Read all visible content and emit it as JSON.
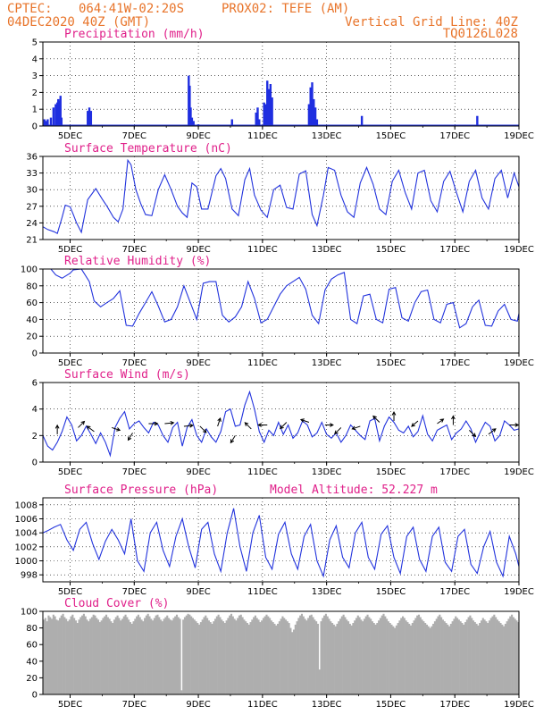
{
  "header": {
    "line1_left": "CPTEC:",
    "line1_coords": "064:41W-02:20S",
    "line1_station": "PROX02: TEFE (AM)",
    "line2_left": "04DEC2020 40Z (GMT)",
    "line2_right": "Vertical Grid Line: 40Z",
    "line3_right": "TQ0126L028"
  },
  "colors": {
    "header": "#e8742a",
    "panel_title": "#e0208a",
    "series_line": "#2233dd",
    "precip_bar": "#1f2ee0",
    "cloud_bar": "#aeaeae"
  },
  "x_axis": {
    "ticks": [
      {
        "day": 5,
        "label": "5DEC"
      },
      {
        "day": 7,
        "label": "7DEC"
      },
      {
        "day": 9,
        "label": "9DEC"
      },
      {
        "day": 11,
        "label": "11DEC"
      },
      {
        "day": 13,
        "label": "13DEC"
      },
      {
        "day": 15,
        "label": "15DEC"
      },
      {
        "day": 17,
        "label": "17DEC"
      },
      {
        "day": 19,
        "label": "19DEC"
      }
    ],
    "range_days": [
      4.15,
      19.0
    ]
  },
  "chart_data": [
    {
      "type": "bar",
      "title": "Precipitation (mm/h)",
      "ylim": [
        0,
        5
      ],
      "yticks": [
        "0",
        "1",
        "2",
        "3",
        "4",
        "5"
      ],
      "grid": true,
      "x_days": [
        4.2,
        4.25,
        4.3,
        4.4,
        4.48,
        4.55,
        4.6,
        4.63,
        4.67,
        4.7,
        4.73,
        5.55,
        5.6,
        5.65,
        8.7,
        8.73,
        8.76,
        8.8,
        8.85,
        9.0,
        10.05,
        10.8,
        10.85,
        10.9,
        11.05,
        11.1,
        11.15,
        11.2,
        11.25,
        11.3,
        12.45,
        12.5,
        12.55,
        12.6,
        12.65,
        12.7,
        14.1,
        17.7
      ],
      "values": [
        0.4,
        0.3,
        0.4,
        0.5,
        1.1,
        1.3,
        1.4,
        1.6,
        1.5,
        1.8,
        0.5,
        0.9,
        1.1,
        0.9,
        3.0,
        2.4,
        1.1,
        0.5,
        0.3,
        0.1,
        0.4,
        0.8,
        1.1,
        0.4,
        1.4,
        1.3,
        2.7,
        2.2,
        2.5,
        1.7,
        1.3,
        2.3,
        2.6,
        1.6,
        1.1,
        0.4,
        0.6,
        0.6
      ]
    },
    {
      "type": "line",
      "title": "Surface Temperature (nC)",
      "ylim": [
        21,
        36
      ],
      "yticks": [
        "21",
        "24",
        "27",
        "30",
        "33",
        "36"
      ],
      "grid": true,
      "x": [
        4.15,
        4.3,
        4.5,
        4.6,
        4.75,
        4.85,
        5.0,
        5.1,
        5.2,
        5.35,
        5.55,
        5.8,
        6.0,
        6.15,
        6.35,
        6.5,
        6.65,
        6.8,
        6.9,
        7.05,
        7.2,
        7.35,
        7.55,
        7.75,
        7.95,
        8.15,
        8.35,
        8.5,
        8.65,
        8.8,
        8.95,
        9.1,
        9.3,
        9.55,
        9.7,
        9.85,
        10.05,
        10.25,
        10.45,
        10.6,
        10.75,
        10.95,
        11.15,
        11.35,
        11.55,
        11.75,
        11.95,
        12.15,
        12.35,
        12.55,
        12.7,
        12.9,
        13.05,
        13.25,
        13.45,
        13.65,
        13.85,
        14.05,
        14.25,
        14.45,
        14.65,
        14.85,
        15.05,
        15.25,
        15.45,
        15.65,
        15.85,
        16.05,
        16.25,
        16.45,
        16.65,
        16.85,
        17.05,
        17.25,
        17.45,
        17.65,
        17.85,
        18.05,
        18.25,
        18.45,
        18.65,
        18.85,
        19.0
      ],
      "values": [
        23.3,
        22.8,
        22.4,
        22.1,
        25.0,
        27.2,
        26.9,
        25.5,
        24.0,
        22.3,
        28.2,
        30.2,
        28.3,
        27.0,
        25.0,
        24.2,
        26.5,
        35.3,
        34.5,
        30.0,
        27.5,
        25.5,
        25.3,
        30.0,
        32.7,
        30.0,
        27.0,
        25.8,
        25.0,
        31.2,
        30.5,
        26.5,
        26.5,
        32.5,
        33.8,
        32.0,
        26.5,
        25.3,
        31.8,
        33.8,
        29.0,
        26.3,
        25.0,
        30.0,
        30.8,
        26.8,
        26.5,
        32.8,
        33.4,
        25.5,
        23.5,
        29.0,
        34.0,
        33.5,
        29.0,
        26.0,
        25.0,
        31.2,
        34.0,
        31.0,
        26.5,
        25.5,
        31.5,
        33.5,
        29.5,
        26.5,
        33.0,
        33.5,
        28.0,
        26.0,
        31.5,
        33.3,
        29.5,
        26.0,
        31.5,
        33.5,
        28.5,
        26.5,
        32.0,
        33.5,
        28.5,
        33.0,
        30.5
      ]
    },
    {
      "type": "line",
      "title": "Relative Humidity (%)",
      "ylim": [
        0,
        100
      ],
      "yticks": [
        "0",
        "20",
        "40",
        "60",
        "80",
        "100"
      ],
      "grid": true,
      "x": [
        4.15,
        4.4,
        4.55,
        4.75,
        5.0,
        5.1,
        5.35,
        5.6,
        5.75,
        5.95,
        6.15,
        6.35,
        6.55,
        6.75,
        6.95,
        7.15,
        7.35,
        7.55,
        7.75,
        7.95,
        8.15,
        8.35,
        8.55,
        8.75,
        8.95,
        9.15,
        9.35,
        9.55,
        9.75,
        9.95,
        10.15,
        10.35,
        10.55,
        10.75,
        10.95,
        11.15,
        11.35,
        11.55,
        11.75,
        11.95,
        12.15,
        12.35,
        12.55,
        12.75,
        12.95,
        13.15,
        13.35,
        13.55,
        13.75,
        13.95,
        14.15,
        14.35,
        14.55,
        14.75,
        14.95,
        15.15,
        15.35,
        15.55,
        15.75,
        15.95,
        16.15,
        16.35,
        16.55,
        16.75,
        16.95,
        17.15,
        17.35,
        17.55,
        17.75,
        17.95,
        18.15,
        18.35,
        18.55,
        18.75,
        18.95,
        19.0
      ],
      "values": [
        100,
        100,
        93,
        89,
        95,
        99,
        100,
        85,
        62,
        55,
        60,
        65,
        74,
        33,
        32,
        47,
        60,
        73,
        56,
        37,
        40,
        55,
        80,
        60,
        40,
        83,
        85,
        85,
        45,
        37,
        43,
        55,
        85,
        65,
        36,
        40,
        55,
        70,
        80,
        85,
        90,
        76,
        45,
        35,
        75,
        88,
        93,
        96,
        40,
        35,
        68,
        70,
        40,
        36,
        76,
        78,
        42,
        38,
        60,
        73,
        75,
        40,
        36,
        58,
        60,
        30,
        35,
        55,
        63,
        33,
        32,
        50,
        58,
        40,
        38,
        47
      ]
    },
    {
      "type": "line",
      "title": "Surface Wind (m/s)",
      "ylim": [
        0,
        6
      ],
      "yticks": [
        "0",
        "2",
        "4",
        "6"
      ],
      "grid": true,
      "x": [
        4.15,
        4.3,
        4.45,
        4.6,
        4.75,
        4.9,
        5.05,
        5.2,
        5.35,
        5.5,
        5.65,
        5.8,
        5.95,
        6.1,
        6.25,
        6.4,
        6.55,
        6.7,
        6.85,
        7.0,
        7.15,
        7.3,
        7.45,
        7.6,
        7.75,
        7.9,
        8.05,
        8.2,
        8.35,
        8.5,
        8.65,
        8.8,
        8.95,
        9.1,
        9.25,
        9.4,
        9.55,
        9.7,
        9.85,
        10.0,
        10.15,
        10.3,
        10.45,
        10.6,
        10.75,
        10.9,
        11.05,
        11.2,
        11.35,
        11.5,
        11.65,
        11.8,
        11.95,
        12.1,
        12.25,
        12.4,
        12.55,
        12.7,
        12.85,
        13.0,
        13.15,
        13.3,
        13.45,
        13.6,
        13.75,
        13.9,
        14.05,
        14.2,
        14.35,
        14.5,
        14.65,
        14.8,
        14.95,
        15.1,
        15.25,
        15.4,
        15.55,
        15.7,
        15.85,
        16.0,
        16.15,
        16.3,
        16.45,
        16.6,
        16.75,
        16.9,
        17.05,
        17.2,
        17.35,
        17.5,
        17.65,
        17.8,
        17.95,
        18.1,
        18.25,
        18.4,
        18.55,
        18.7,
        18.85,
        19.0
      ],
      "values": [
        2.0,
        1.2,
        0.9,
        1.5,
        2.3,
        3.4,
        2.8,
        1.6,
        2.0,
        2.7,
        2.1,
        1.4,
        2.2,
        1.5,
        0.5,
        2.6,
        3.3,
        3.8,
        2.5,
        2.9,
        3.1,
        2.6,
        2.2,
        3.0,
        2.8,
        2.0,
        1.5,
        2.6,
        3.0,
        1.2,
        2.6,
        3.2,
        2.0,
        1.5,
        2.5,
        1.9,
        1.5,
        2.3,
        3.8,
        4.0,
        2.7,
        2.8,
        4.3,
        5.3,
        4.0,
        2.3,
        1.5,
        2.4,
        2.0,
        3.0,
        2.1,
        2.8,
        1.8,
        2.2,
        3.1,
        2.8,
        1.9,
        2.2,
        3.0,
        2.1,
        1.8,
        2.2,
        1.5,
        2.0,
        2.8,
        2.4,
        2.0,
        1.7,
        3.1,
        3.3,
        1.6,
        2.7,
        3.4,
        3.0,
        2.4,
        2.2,
        2.7,
        1.9,
        2.3,
        3.5,
        2.1,
        1.6,
        2.4,
        2.6,
        2.8,
        1.7,
        2.2,
        2.5,
        3.1,
        2.5,
        1.5,
        2.3,
        3.0,
        2.7,
        1.6,
        2.0,
        3.1,
        2.8,
        2.4,
        2.5
      ],
      "vectors": [
        {
          "x": 4.6,
          "y": 2.1,
          "dx": 0.0,
          "dy": 1.0
        },
        {
          "x": 5.25,
          "y": 2.6,
          "dx": 0.7,
          "dy": 0.7
        },
        {
          "x": 5.75,
          "y": 2.3,
          "dx": -0.8,
          "dy": 0.6
        },
        {
          "x": 6.3,
          "y": 2.6,
          "dx": 0.9,
          "dy": -0.3
        },
        {
          "x": 6.95,
          "y": 2.2,
          "dx": -0.5,
          "dy": -0.8
        },
        {
          "x": 7.45,
          "y": 2.9,
          "dx": 1.0,
          "dy": 0.0
        },
        {
          "x": 7.95,
          "y": 2.9,
          "dx": 1.0,
          "dy": 0.1
        },
        {
          "x": 8.55,
          "y": 2.7,
          "dx": 1.0,
          "dy": 0.1
        },
        {
          "x": 9.05,
          "y": 2.7,
          "dx": 0.7,
          "dy": -0.7
        },
        {
          "x": 9.6,
          "y": 2.7,
          "dx": 0.3,
          "dy": 0.9
        },
        {
          "x": 10.15,
          "y": 2.0,
          "dx": -0.5,
          "dy": -0.8
        },
        {
          "x": 10.65,
          "y": 2.5,
          "dx": -0.7,
          "dy": 0.7
        },
        {
          "x": 11.15,
          "y": 2.8,
          "dx": -1.0,
          "dy": 0.0
        },
        {
          "x": 11.75,
          "y": 3.0,
          "dx": -0.7,
          "dy": -0.7
        },
        {
          "x": 12.45,
          "y": 3.0,
          "dx": -0.9,
          "dy": 0.3
        },
        {
          "x": 12.95,
          "y": 2.8,
          "dx": 0.9,
          "dy": 0.0
        },
        {
          "x": 13.45,
          "y": 2.6,
          "dx": -0.7,
          "dy": -0.7
        },
        {
          "x": 14.05,
          "y": 2.7,
          "dx": -0.9,
          "dy": -0.3
        },
        {
          "x": 14.65,
          "y": 3.0,
          "dx": -0.7,
          "dy": 0.7
        },
        {
          "x": 15.1,
          "y": 3.1,
          "dx": 0.0,
          "dy": 1.0
        },
        {
          "x": 15.85,
          "y": 3.1,
          "dx": -0.7,
          "dy": -0.6
        },
        {
          "x": 16.45,
          "y": 2.9,
          "dx": 0.7,
          "dy": 0.5
        },
        {
          "x": 16.95,
          "y": 2.8,
          "dx": 0.0,
          "dy": 1.0
        },
        {
          "x": 17.45,
          "y": 2.4,
          "dx": 0.7,
          "dy": -0.7
        },
        {
          "x": 18.05,
          "y": 2.1,
          "dx": 0.8,
          "dy": 0.6
        },
        {
          "x": 18.7,
          "y": 2.8,
          "dx": 1.0,
          "dy": 0.0
        }
      ]
    },
    {
      "type": "line",
      "title": "Surface Pressure (hPa)",
      "annotation": "Model Altitude: 52.227 m",
      "ylim": [
        997,
        1009
      ],
      "yticks": [
        "998",
        "1000",
        "1002",
        "1004",
        "1006",
        "1008"
      ],
      "grid": true,
      "x": [
        4.15,
        4.3,
        4.5,
        4.7,
        4.9,
        5.1,
        5.3,
        5.5,
        5.7,
        5.9,
        6.1,
        6.3,
        6.5,
        6.7,
        6.9,
        7.1,
        7.3,
        7.5,
        7.7,
        7.9,
        8.1,
        8.3,
        8.5,
        8.7,
        8.9,
        9.1,
        9.3,
        9.5,
        9.7,
        9.9,
        10.1,
        10.3,
        10.5,
        10.7,
        10.9,
        11.1,
        11.3,
        11.5,
        11.7,
        11.9,
        12.1,
        12.3,
        12.5,
        12.7,
        12.9,
        13.1,
        13.3,
        13.5,
        13.7,
        13.9,
        14.1,
        14.3,
        14.5,
        14.7,
        14.9,
        15.1,
        15.3,
        15.5,
        15.7,
        15.9,
        16.1,
        16.3,
        16.5,
        16.7,
        16.9,
        17.1,
        17.3,
        17.5,
        17.7,
        17.9,
        18.1,
        18.3,
        18.5,
        18.7,
        18.9,
        19.0
      ],
      "values": [
        1004.0,
        1004.3,
        1004.8,
        1005.2,
        1003.0,
        1001.5,
        1004.5,
        1005.5,
        1002.5,
        1000.2,
        1002.8,
        1004.5,
        1003.0,
        1001.0,
        1006.0,
        1000.0,
        998.5,
        1004.0,
        1005.5,
        1001.5,
        999.2,
        1003.5,
        1006.0,
        1002.0,
        999.0,
        1004.5,
        1005.5,
        1001.0,
        998.5,
        1004.0,
        1007.5,
        1002.0,
        998.5,
        1004.0,
        1006.5,
        1000.5,
        998.8,
        1003.8,
        1005.5,
        1001.0,
        998.8,
        1003.5,
        1005.2,
        1000.0,
        997.8,
        1003.0,
        1005.0,
        1000.5,
        999.0,
        1004.0,
        1005.5,
        1000.5,
        998.8,
        1003.8,
        1005.0,
        1000.5,
        998.2,
        1003.5,
        1004.8,
        1000.2,
        998.5,
        1003.5,
        1004.8,
        999.8,
        998.5,
        1003.5,
        1004.5,
        999.5,
        998.2,
        1002.0,
        1004.2,
        999.8,
        997.8,
        1003.5,
        1001.0,
        999.2
      ]
    },
    {
      "type": "bar",
      "title": "Cloud Cover (%)",
      "ylim": [
        0,
        100
      ],
      "yticks": [
        "0",
        "20",
        "40",
        "60",
        "80",
        "100"
      ],
      "grid": false,
      "x_start": 4.15,
      "x_step": 0.05,
      "values": [
        90,
        92,
        88,
        95,
        93,
        91,
        96,
        94,
        90,
        89,
        92,
        95,
        97,
        93,
        91,
        88,
        90,
        94,
        96,
        92,
        89,
        86,
        90,
        93,
        95,
        97,
        94,
        90,
        88,
        91,
        93,
        96,
        95,
        92,
        90,
        87,
        89,
        92,
        94,
        96,
        93,
        91,
        88,
        86,
        90,
        93,
        95,
        92,
        89,
        91,
        94,
        96,
        93,
        90,
        87,
        85,
        88,
        91,
        94,
        96,
        93,
        90,
        88,
        92,
        95,
        97,
        94,
        91,
        89,
        92,
        95,
        96,
        93,
        90,
        88,
        91,
        93,
        95,
        92,
        90,
        89,
        92,
        94,
        96,
        93,
        91,
        5,
        90,
        93,
        95,
        97,
        96,
        94,
        92,
        90,
        88,
        86,
        84,
        87,
        90,
        93,
        95,
        92,
        89,
        87,
        85,
        88,
        91,
        94,
        96,
        93,
        90,
        88,
        86,
        89,
        92,
        95,
        97,
        94,
        91,
        89,
        92,
        95,
        96,
        93,
        90,
        88,
        86,
        84,
        87,
        90,
        93,
        95,
        92,
        90,
        87,
        89,
        92,
        94,
        96,
        94,
        92,
        89,
        87,
        85,
        83,
        85,
        88,
        91,
        94,
        92,
        90,
        88,
        86,
        80,
        75,
        78,
        84,
        88,
        92,
        95,
        97,
        94,
        91,
        89,
        92,
        95,
        96,
        93,
        90,
        88,
        85,
        30,
        88,
        92,
        95,
        97,
        94,
        91,
        88,
        86,
        84,
        82,
        85,
        88,
        91,
        94,
        96,
        93,
        90,
        88,
        85,
        83,
        86,
        89,
        92,
        95,
        93,
        90,
        88,
        91,
        94,
        96,
        93,
        91,
        88,
        86,
        84,
        86,
        89,
        92,
        95,
        97,
        94,
        91,
        88,
        86,
        84,
        82,
        80,
        83,
        86,
        89,
        92,
        94,
        92,
        89,
        87,
        85,
        83,
        86,
        89,
        92,
        95,
        96,
        93,
        90,
        88,
        86,
        84,
        82,
        80,
        82,
        85,
        88,
        91,
        94,
        96,
        93,
        90,
        88,
        86,
        84,
        82,
        85,
        88,
        91,
        94,
        92,
        90,
        88,
        86,
        84,
        87,
        90,
        93,
        95,
        92,
        89,
        87,
        85,
        83,
        86,
        89,
        92,
        90,
        88,
        86,
        89,
        92,
        94,
        96,
        93,
        90,
        88,
        86,
        84,
        82,
        85,
        88,
        91,
        94,
        96,
        93,
        91,
        89,
        87,
        85,
        83,
        81,
        84,
        87,
        90,
        93,
        95
      ]
    }
  ]
}
